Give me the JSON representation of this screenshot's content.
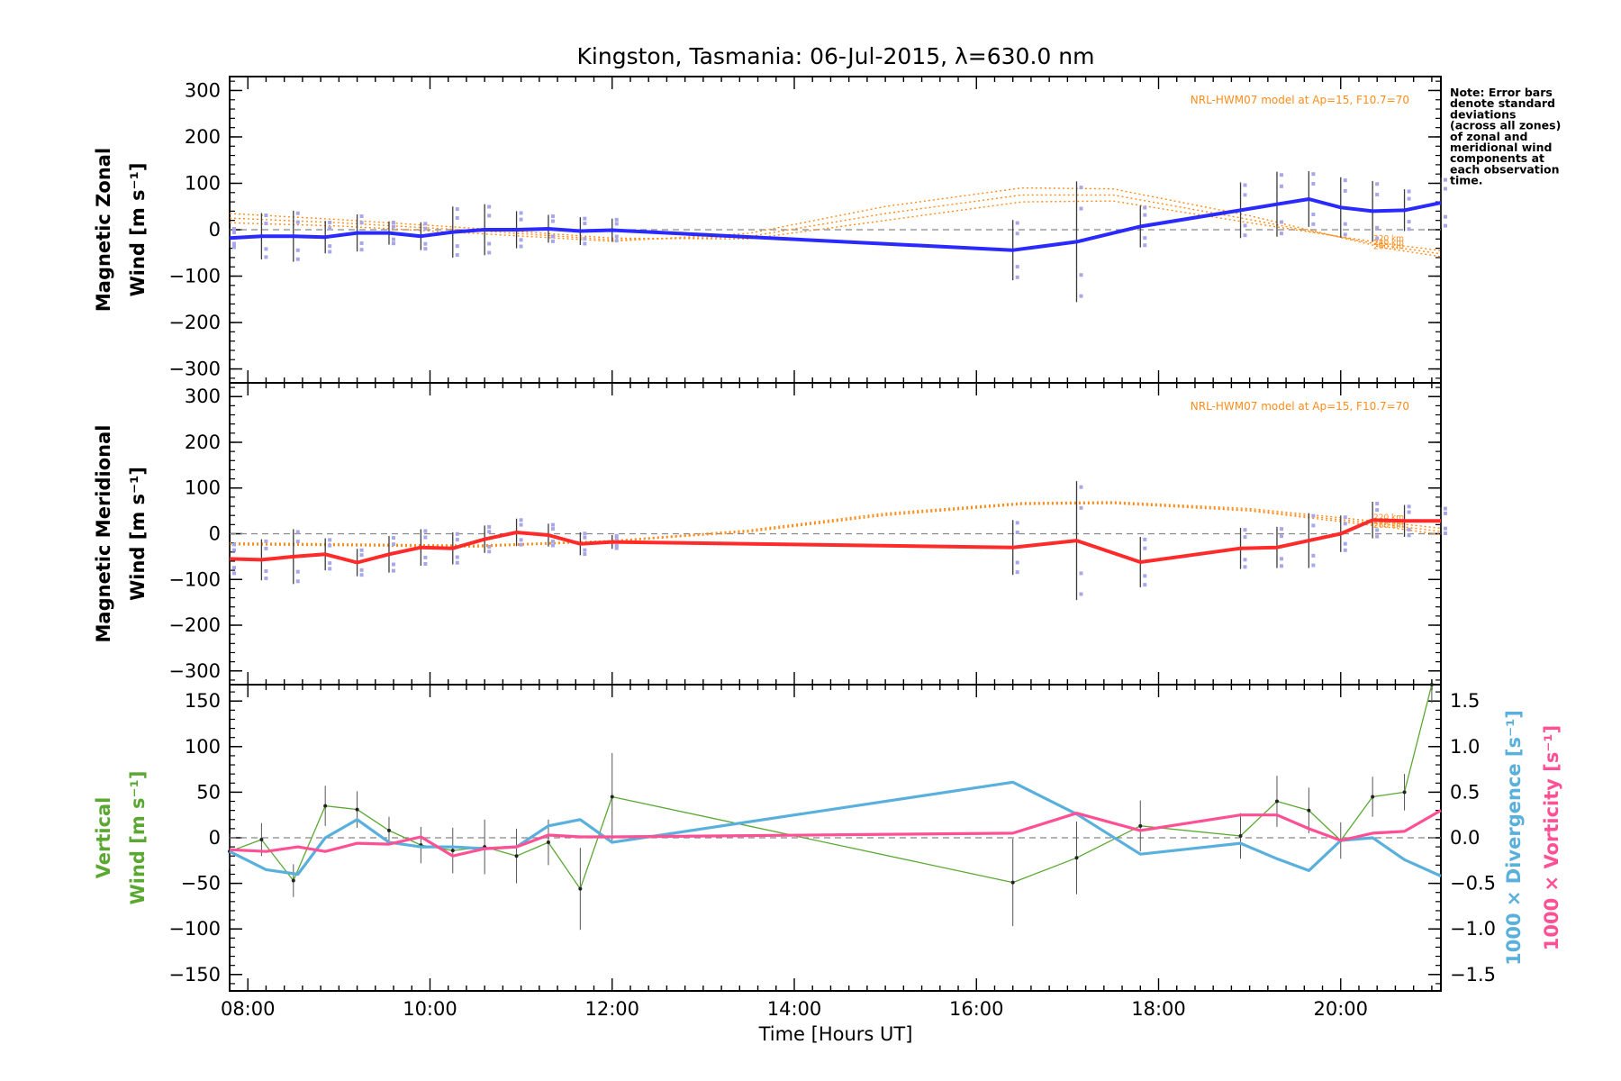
{
  "chart_data": {
    "title": "Kingston, Tasmania: 06-Jul-2015, λ=630.0 nm",
    "xlabel": "Time [Hours UT]",
    "xlim": [
      7.8,
      21.1
    ],
    "x_tick_values": [
      8,
      10,
      12,
      14,
      16,
      18,
      20
    ],
    "x_tick_labels": [
      "08:00",
      "10:00",
      "12:00",
      "14:00",
      "16:00",
      "18:00",
      "20:00"
    ],
    "note": [
      "Note: Error bars",
      "denote standard",
      "deviations",
      "(across all zones)",
      "of zonal and",
      "meridional wind",
      "components at",
      "each observation",
      "time."
    ],
    "panels": [
      {
        "name": "zonal",
        "type": "line",
        "ylabel": [
          "Magnetic Zonal",
          "Wind [m s⁻¹]"
        ],
        "ylim": [
          -330,
          330
        ],
        "y_tick_values": [
          300,
          200,
          100,
          0,
          -100,
          -200,
          -300
        ],
        "y_tick_labels": [
          "300",
          "200",
          "100",
          "0",
          "−100",
          "−200",
          "−300"
        ],
        "model_label": "NRL-HWM07 model at Ap=15, F10.7=70",
        "altitude_labels": [
          "220 km",
          "240 km",
          "260 km"
        ],
        "series": [
          {
            "color": "#2a2aff",
            "x": [
              7.8,
              8.15,
              8.5,
              8.85,
              9.2,
              9.55,
              9.9,
              10.25,
              10.6,
              10.95,
              11.3,
              11.65,
              12.0,
              16.4,
              17.1,
              17.8,
              18.9,
              19.3,
              19.65,
              20.0,
              20.35,
              20.7,
              21.1
            ],
            "y": [
              -18,
              -14,
              -14,
              -16,
              -7,
              -7,
              -14,
              -5,
              0,
              0,
              2,
              -3,
              -1,
              -44,
              -26,
              7,
              42,
              55,
              66,
              48,
              40,
              42,
              58
            ],
            "err": [
              22,
              50,
              55,
              35,
              40,
              25,
              30,
              55,
              55,
              40,
              30,
              30,
              25,
              65,
              130,
              45,
              60,
              70,
              60,
              65,
              65,
              45,
              55
            ]
          }
        ],
        "model_series": [
          {
            "name": "220 km",
            "x": [
              7.8,
              9.0,
              10.5,
              12.0,
              13.5,
              15.0,
              16.5,
              17.5,
              19.0,
              20.5,
              21.1
            ],
            "y": [
              35,
              22,
              3,
              -18,
              -20,
              20,
              60,
              62,
              15,
              -30,
              -45
            ]
          },
          {
            "name": "240 km",
            "x": [
              7.8,
              9.0,
              10.5,
              12.0,
              13.5,
              15.0,
              16.5,
              17.5,
              19.0,
              20.5,
              21.1
            ],
            "y": [
              25,
              15,
              -2,
              -22,
              -15,
              35,
              75,
              75,
              22,
              -35,
              -52
            ]
          },
          {
            "name": "260 km",
            "x": [
              7.8,
              9.0,
              10.5,
              12.0,
              13.5,
              15.0,
              16.5,
              17.5,
              19.0,
              20.5,
              21.1
            ],
            "y": [
              15,
              8,
              -8,
              -25,
              -8,
              50,
              90,
              88,
              30,
              -40,
              -58
            ]
          }
        ]
      },
      {
        "name": "meridional",
        "type": "line",
        "ylabel": [
          "Magnetic Meridional",
          "Wind [m s⁻¹]"
        ],
        "ylim": [
          -330,
          330
        ],
        "y_tick_values": [
          300,
          200,
          100,
          0,
          -100,
          -200,
          -300
        ],
        "y_tick_labels": [
          "300",
          "200",
          "100",
          "0",
          "−100",
          "−200",
          "−300"
        ],
        "model_label": "NRL-HWM07 model at Ap=15, F10.7=70",
        "altitude_labels": [
          "220 km",
          "240 km",
          "260 km"
        ],
        "series": [
          {
            "color": "#ff2a2a",
            "x": [
              7.8,
              8.15,
              8.5,
              8.85,
              9.2,
              9.55,
              9.9,
              10.25,
              10.6,
              10.95,
              11.3,
              11.65,
              12.0,
              16.4,
              17.1,
              17.8,
              18.9,
              19.3,
              19.65,
              20.0,
              20.35,
              20.7,
              21.1
            ],
            "y": [
              -55,
              -57,
              -50,
              -45,
              -63,
              -45,
              -30,
              -32,
              -12,
              3,
              -3,
              -22,
              -18,
              -30,
              -15,
              -62,
              -32,
              -30,
              -15,
              0,
              30,
              28,
              28
            ],
            "err": [
              35,
              45,
              60,
              35,
              30,
              40,
              40,
              35,
              30,
              30,
              25,
              25,
              15,
              60,
              130,
              55,
              45,
              45,
              60,
              40,
              40,
              35,
              30
            ]
          }
        ],
        "model_series": [
          {
            "name": "220 km",
            "x": [
              7.8,
              9.0,
              10.5,
              12.0,
              13.5,
              15.0,
              16.5,
              17.5,
              19.0,
              20.5,
              21.1
            ],
            "y": [
              -20,
              -22,
              -25,
              -15,
              8,
              45,
              68,
              70,
              55,
              25,
              12
            ]
          },
          {
            "name": "240 km",
            "x": [
              7.8,
              9.0,
              10.5,
              12.0,
              13.5,
              15.0,
              16.5,
              17.5,
              19.0,
              20.5,
              21.1
            ],
            "y": [
              -22,
              -24,
              -27,
              -16,
              6,
              42,
              66,
              68,
              52,
              20,
              5
            ]
          },
          {
            "name": "260 km",
            "x": [
              7.8,
              9.0,
              10.5,
              12.0,
              13.5,
              15.0,
              16.5,
              17.5,
              19.0,
              20.5,
              21.1
            ],
            "y": [
              -24,
              -26,
              -29,
              -17,
              4,
              40,
              64,
              66,
              50,
              15,
              -2
            ]
          }
        ]
      },
      {
        "name": "vertical",
        "type": "line",
        "ylabel_left": [
          "Vertical",
          "Wind [m s⁻¹]"
        ],
        "ylabel_right": [
          "1000 × Divergence [s⁻¹]",
          "1000 × Vorticity [s⁻¹]"
        ],
        "ylim": [
          -168,
          168
        ],
        "y_tick_values": [
          150,
          100,
          50,
          0,
          -50,
          -100,
          -150
        ],
        "y_tick_labels": [
          "150",
          "100",
          "50",
          "0",
          "−50",
          "−100",
          "−150"
        ],
        "ylim_right": [
          -1.68,
          1.68
        ],
        "y2_tick_values": [
          1.5,
          1.0,
          0.5,
          0.0,
          -0.5,
          -1.0,
          -1.5
        ],
        "y2_tick_labels": [
          "1.5",
          "1.0",
          "0.5",
          "0.0",
          "−0.5",
          "−1.0",
          "−1.5"
        ],
        "series": [
          {
            "name": "Vertical Wind",
            "color": "#5aa832",
            "axis": "left",
            "x": [
              7.8,
              8.15,
              8.5,
              8.85,
              9.2,
              9.55,
              9.9,
              10.25,
              10.6,
              10.95,
              11.3,
              11.65,
              12.0,
              16.4,
              17.1,
              17.8,
              18.9,
              19.3,
              19.65,
              20.0,
              20.35,
              20.7,
              21.0
            ],
            "y": [
              -15,
              -2,
              -47,
              35,
              31,
              8,
              -8,
              -14,
              -10,
              -20,
              -5,
              -56,
              45,
              -49,
              -22,
              13,
              2,
              40,
              30,
              -3,
              45,
              50,
              168
            ],
            "err": [
              20,
              18,
              18,
              22,
              20,
              15,
              20,
              25,
              30,
              30,
              25,
              45,
              48,
              48,
              40,
              28,
              25,
              28,
              25,
              20,
              22,
              20,
              20
            ]
          },
          {
            "name": "1000 × Divergence",
            "color": "#5ab0dc",
            "axis": "right",
            "x": [
              7.8,
              8.2,
              8.55,
              8.85,
              9.2,
              9.55,
              9.9,
              10.25,
              10.6,
              10.95,
              11.3,
              11.65,
              12.0,
              16.4,
              17.1,
              17.8,
              18.9,
              19.3,
              19.65,
              20.0,
              20.35,
              20.7,
              21.1
            ],
            "y": [
              -0.15,
              -0.35,
              -0.4,
              0.0,
              0.2,
              -0.05,
              -0.1,
              -0.1,
              -0.12,
              -0.1,
              0.13,
              0.2,
              -0.05,
              0.61,
              0.26,
              -0.18,
              -0.06,
              -0.23,
              -0.36,
              -0.03,
              0.0,
              -0.24,
              -0.42
            ]
          },
          {
            "name": "1000 × Vorticity",
            "color": "#ff5096",
            "axis": "right",
            "x": [
              7.8,
              8.2,
              8.55,
              8.85,
              9.2,
              9.55,
              9.9,
              10.25,
              10.6,
              10.95,
              11.3,
              11.65,
              12.0,
              16.4,
              17.1,
              17.8,
              18.9,
              19.3,
              19.65,
              20.0,
              20.35,
              20.7,
              21.1
            ],
            "y": [
              -0.13,
              -0.15,
              -0.1,
              -0.15,
              -0.06,
              -0.07,
              0.01,
              -0.2,
              -0.12,
              -0.1,
              0.03,
              0.01,
              0.01,
              0.05,
              0.27,
              0.08,
              0.25,
              0.25,
              0.1,
              -0.03,
              0.05,
              0.07,
              0.3
            ]
          }
        ]
      }
    ]
  },
  "colors": {
    "zonal_line": "#2a2aff",
    "meridional_line": "#ff2a2a",
    "vertical_line": "#5aa832",
    "divergence_line": "#5ab0dc",
    "vorticity_line": "#ff5096",
    "model_line": "#ff8c1a",
    "zero_line": "#888888"
  }
}
